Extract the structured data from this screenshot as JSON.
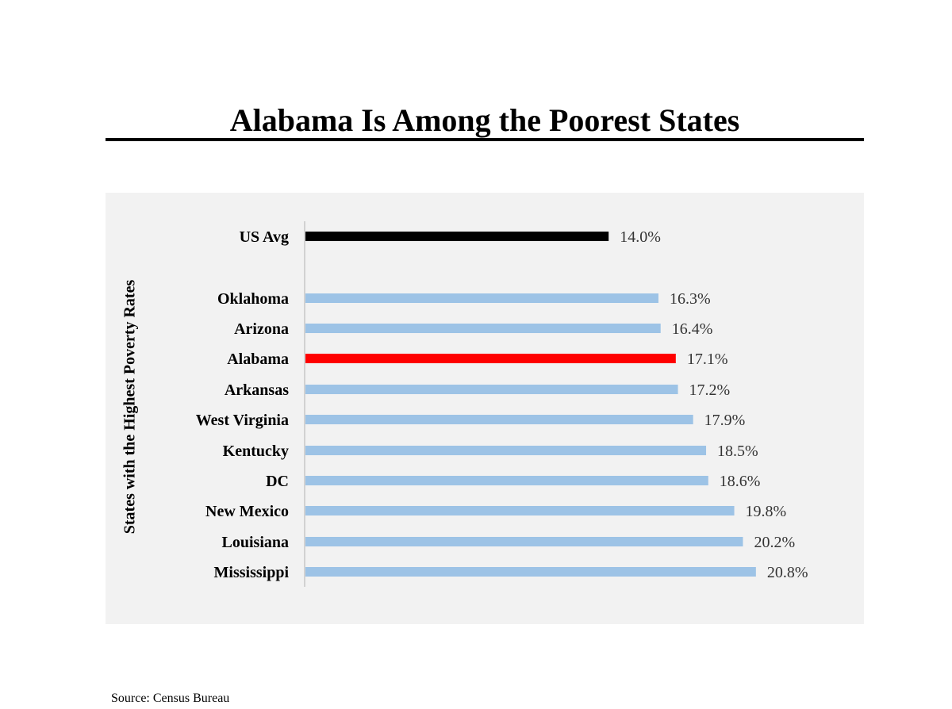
{
  "title": "Alabama Is Among the Poorest States",
  "source": "Source: Census Bureau",
  "colors": {
    "us_avg": "#000000",
    "highlight": "#ff0000",
    "default": "#9dc3e6",
    "panel_bg": "#f2f2f2"
  },
  "chart_data": {
    "type": "bar",
    "orientation": "horizontal",
    "title": "Alabama Is Among the Poorest States",
    "ylabel": "States with the Highest Poverty Rates",
    "xlabel": "",
    "xlim": [
      0,
      22
    ],
    "grid": false,
    "legend": "none",
    "categories": [
      "US Avg",
      "Oklahoma",
      "Arizona",
      "Alabama",
      "Arkansas",
      "West Virginia",
      "Kentucky",
      "DC",
      "New Mexico",
      "Louisiana",
      "Mississippi"
    ],
    "values": [
      14.0,
      16.3,
      16.4,
      17.1,
      17.2,
      17.9,
      18.5,
      18.6,
      19.8,
      20.2,
      20.8
    ],
    "value_labels": [
      "14.0%",
      "16.3%",
      "16.4%",
      "17.1%",
      "17.2%",
      "17.9%",
      "18.5%",
      "18.6%",
      "19.8%",
      "20.2%",
      "20.8%"
    ],
    "bar_colors": [
      "#000000",
      "#9dc3e6",
      "#9dc3e6",
      "#ff0000",
      "#9dc3e6",
      "#9dc3e6",
      "#9dc3e6",
      "#9dc3e6",
      "#9dc3e6",
      "#9dc3e6",
      "#9dc3e6"
    ]
  }
}
